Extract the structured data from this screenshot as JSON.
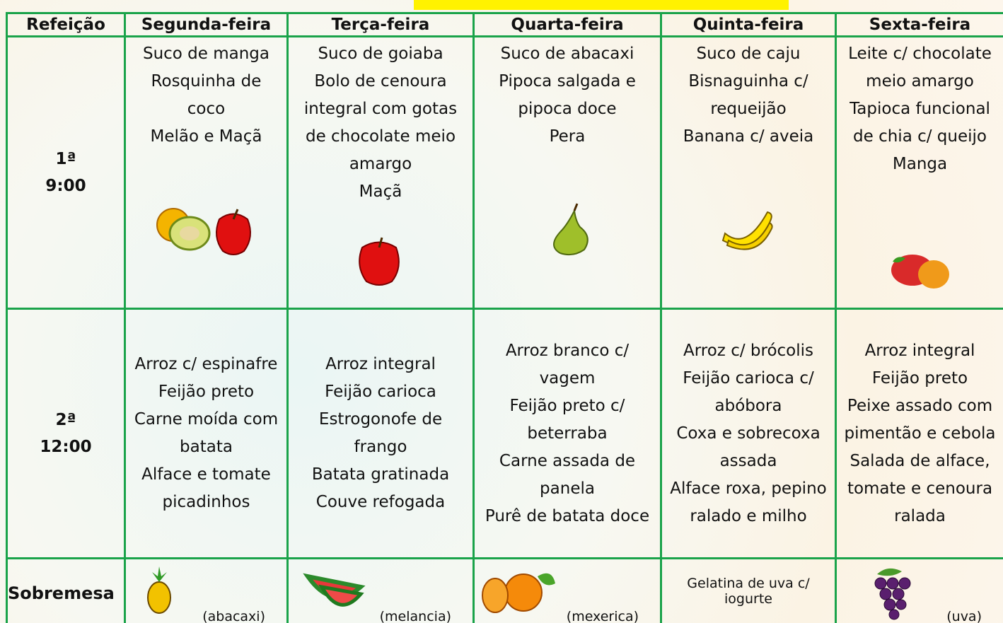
{
  "table": {
    "header": [
      "Refeição",
      "Segunda-feira",
      "Terça-feira",
      "Quarta-feira",
      "Quinta-feira",
      "Sexta-feira"
    ],
    "rows": [
      {
        "meal": [
          "1ª",
          "9:00"
        ],
        "cells": [
          [
            "Suco de manga",
            "Rosquinha de coco",
            "Melão e Maçã"
          ],
          [
            "Suco de goiaba",
            "Bolo de cenoura integral com gotas de chocolate meio amargo",
            "Maçã"
          ],
          [
            "Suco de abacaxi",
            "Pipoca salgada e pipoca doce",
            "Pera"
          ],
          [
            "Suco de caju",
            "Bisnaguinha c/ requeijão",
            "Banana c/ aveia"
          ],
          [
            "Leite c/ chocolate meio amargo",
            "Tapioca funcional de chia c/ queijo",
            "Manga"
          ]
        ]
      },
      {
        "meal": [
          "2ª",
          "12:00"
        ],
        "cells": [
          [
            "Arroz c/ espinafre",
            "Feijão preto",
            "Carne moída com batata",
            "Alface e tomate picadinhos"
          ],
          [
            "Arroz integral",
            "Feijão carioca",
            "Estrogonofe de frango",
            "Batata gratinada",
            "Couve refogada"
          ],
          [
            "Arroz branco c/ vagem",
            "Feijão preto c/ beterraba",
            "Carne assada de panela",
            "Purê de batata doce"
          ],
          [
            "Arroz c/ brócolis",
            "Feijão carioca c/ abóbora",
            "Coxa e sobrecoxa assada",
            "Alface roxa, pepino ralado e milho"
          ],
          [
            "Arroz integral",
            "Feijão preto",
            "Peixe assado com pimentão e cebola",
            "Salada de alface, tomate e cenoura ralada"
          ]
        ]
      }
    ],
    "dessert": {
      "label": "Sobremesa",
      "items": [
        "(abacaxi)",
        "(melancia)",
        "(mexerica)",
        "Gelatina de uva c/ iogurte",
        "(uva)"
      ]
    }
  }
}
